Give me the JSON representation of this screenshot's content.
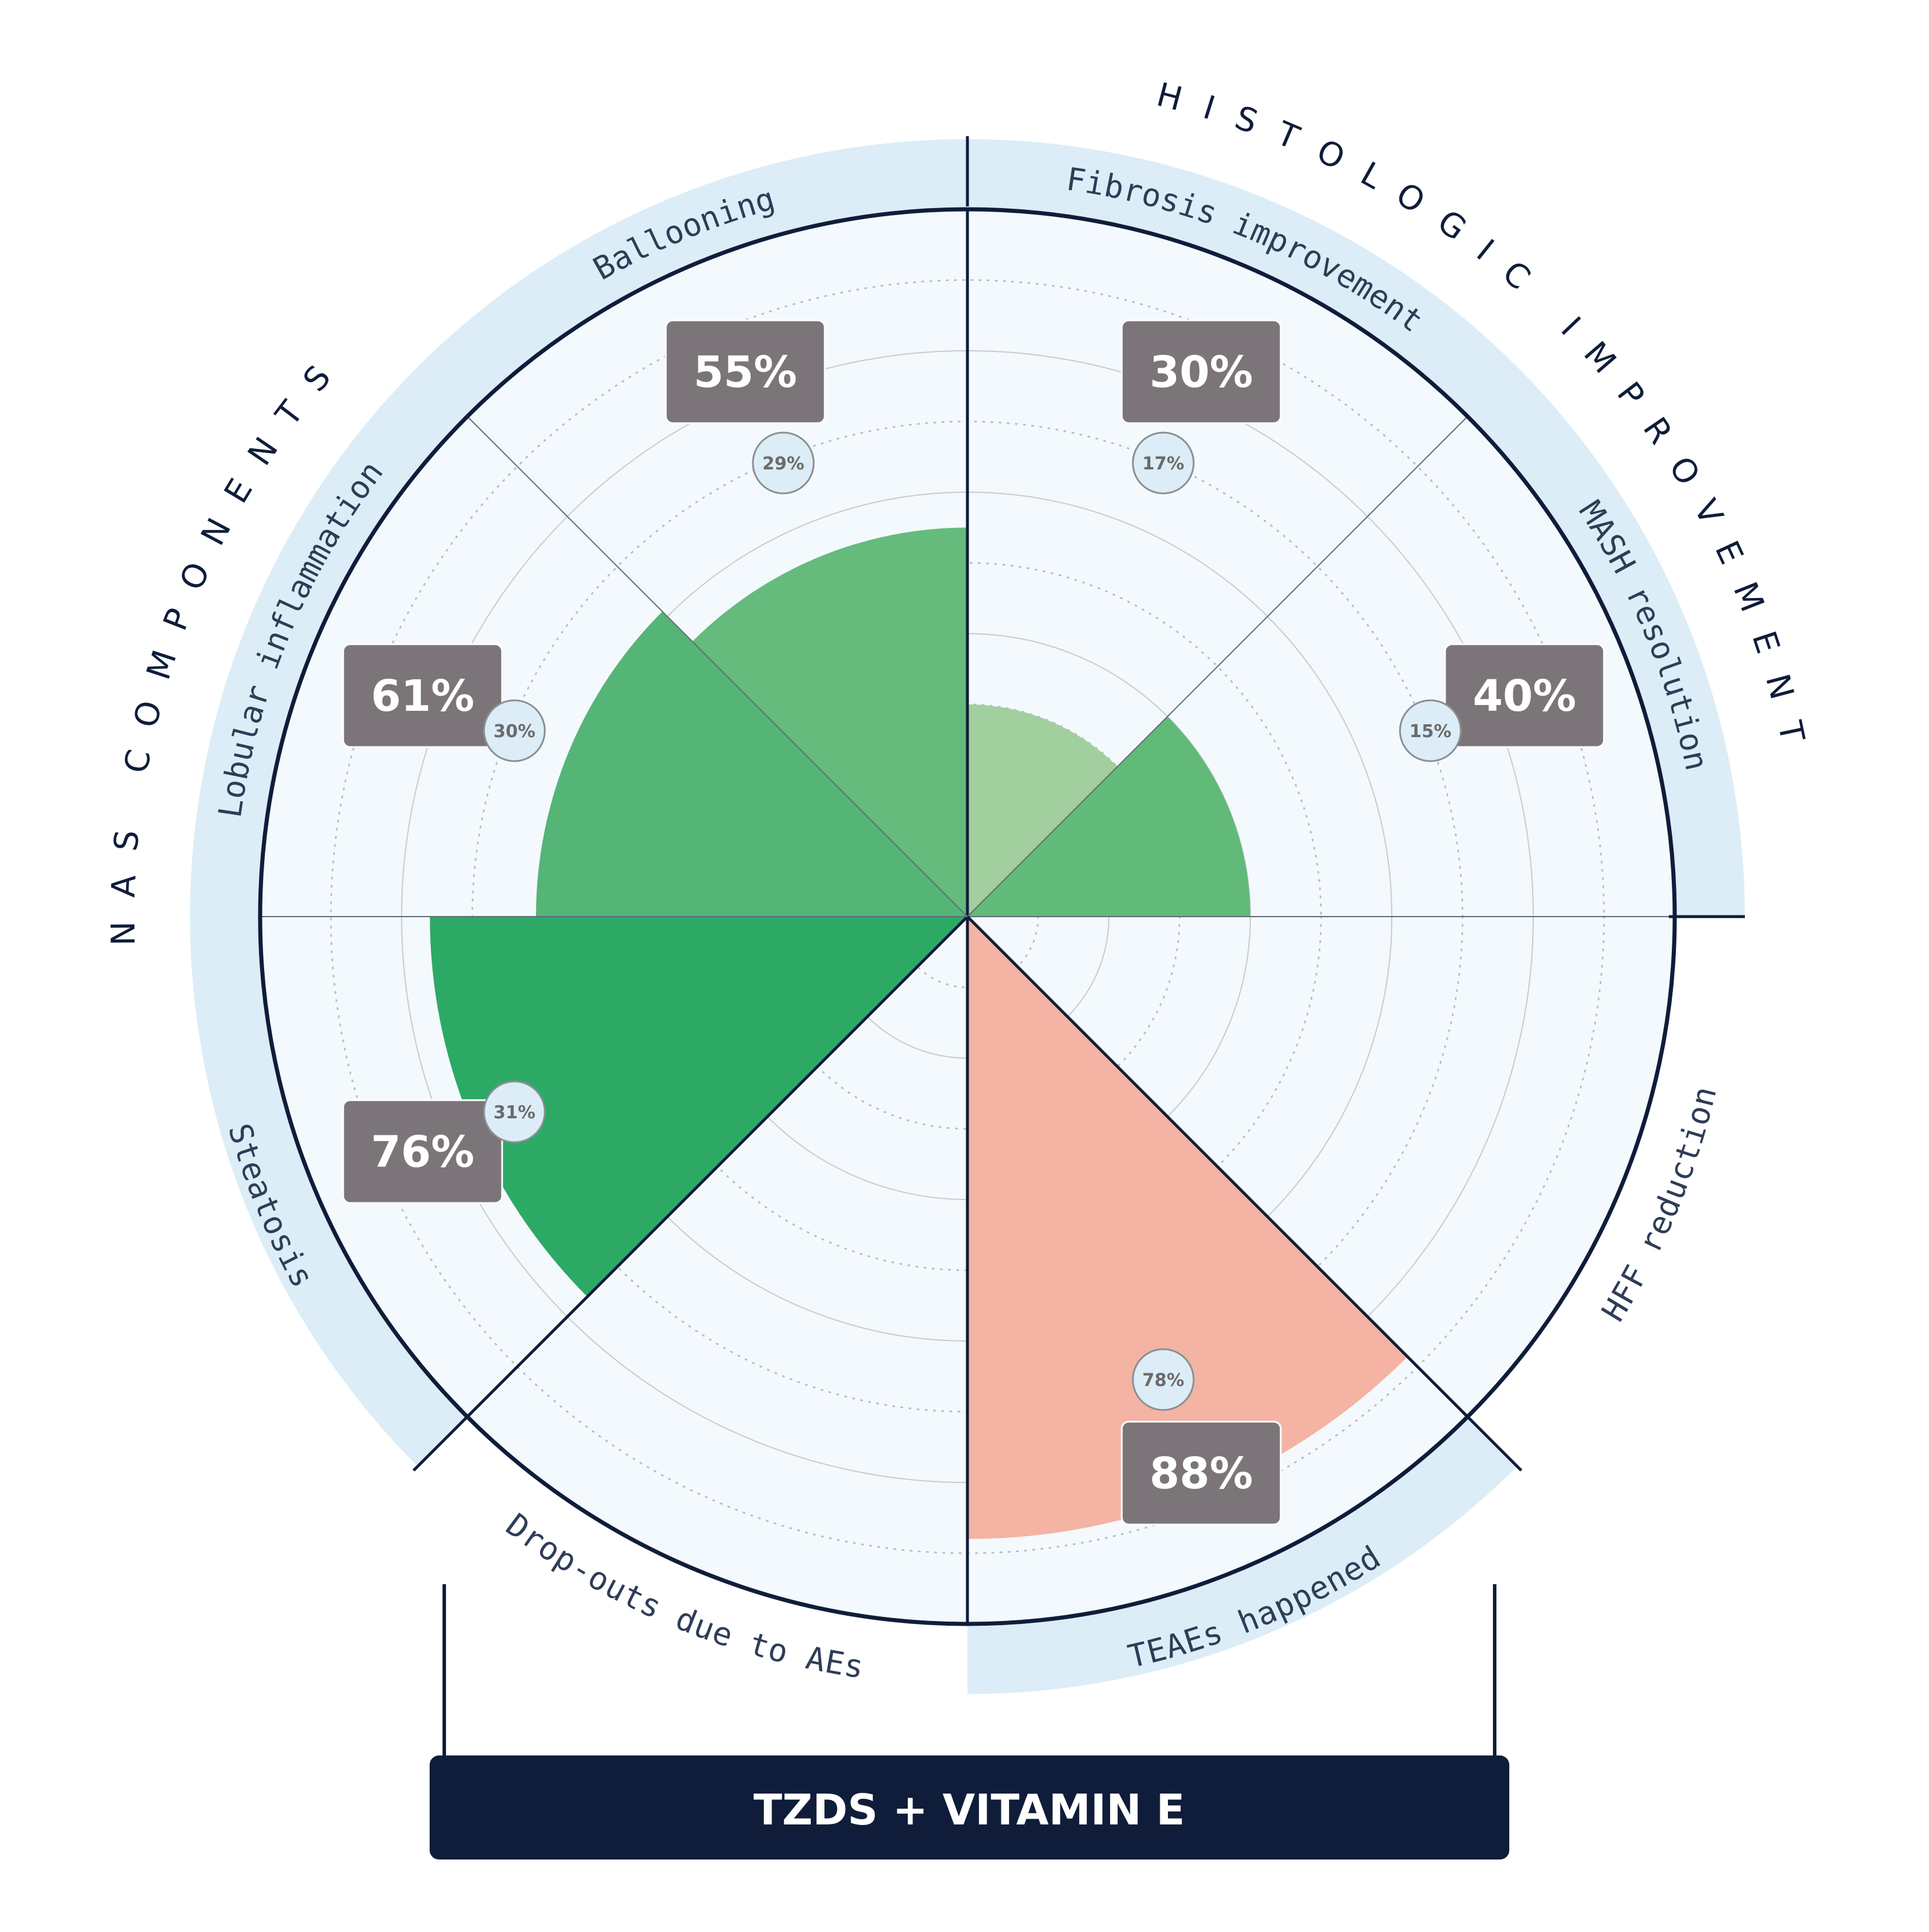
{
  "chart_data": {
    "type": "polar-bar",
    "title": "",
    "groups": [
      {
        "label": "NAS COMPONENTS",
        "categories": [
          "Steatosis",
          "Lobular inflammation",
          "Ballooning"
        ]
      },
      {
        "label": "HISTOLOGIC IMPROVEMENT",
        "categories": [
          "Fibrosis improvement",
          "MASH resolution"
        ]
      }
    ],
    "categories": [
      "Fibrosis improvement",
      "MASH resolution",
      "HFF reduction",
      "TEAEs happened",
      "Drop-outs due to AEs",
      "Steatosis",
      "Lobular inflammation",
      "Ballooning"
    ],
    "values": [
      30,
      40,
      null,
      88,
      null,
      76,
      61,
      55
    ],
    "value_labels": [
      "30%",
      "40%",
      "",
      "88%",
      "",
      "76%",
      "61%",
      "55%"
    ],
    "reference_values": [
      17,
      15,
      null,
      78,
      null,
      31,
      30,
      29
    ],
    "reference_labels": [
      "17%",
      "15%",
      "",
      "78%",
      "",
      "31%",
      "30%",
      "29%"
    ],
    "rlim": [
      0,
      100
    ],
    "grid": true,
    "colors": {
      "Fibrosis improvement": "#a2cf9e",
      "MASH resolution": "#62ba78",
      "TEAEs happened": "#f4b3a3",
      "Steatosis": "#2caa65",
      "Lobular inflammation": "#55b576",
      "Ballooning": "#65bb7c"
    },
    "label_box_color": "#7b7579",
    "ring_color": "#0f1d3a",
    "band_color": "#dcedf7",
    "plot_background": "#f4f9fd",
    "footer": "TZDS + VITAMIN E"
  }
}
